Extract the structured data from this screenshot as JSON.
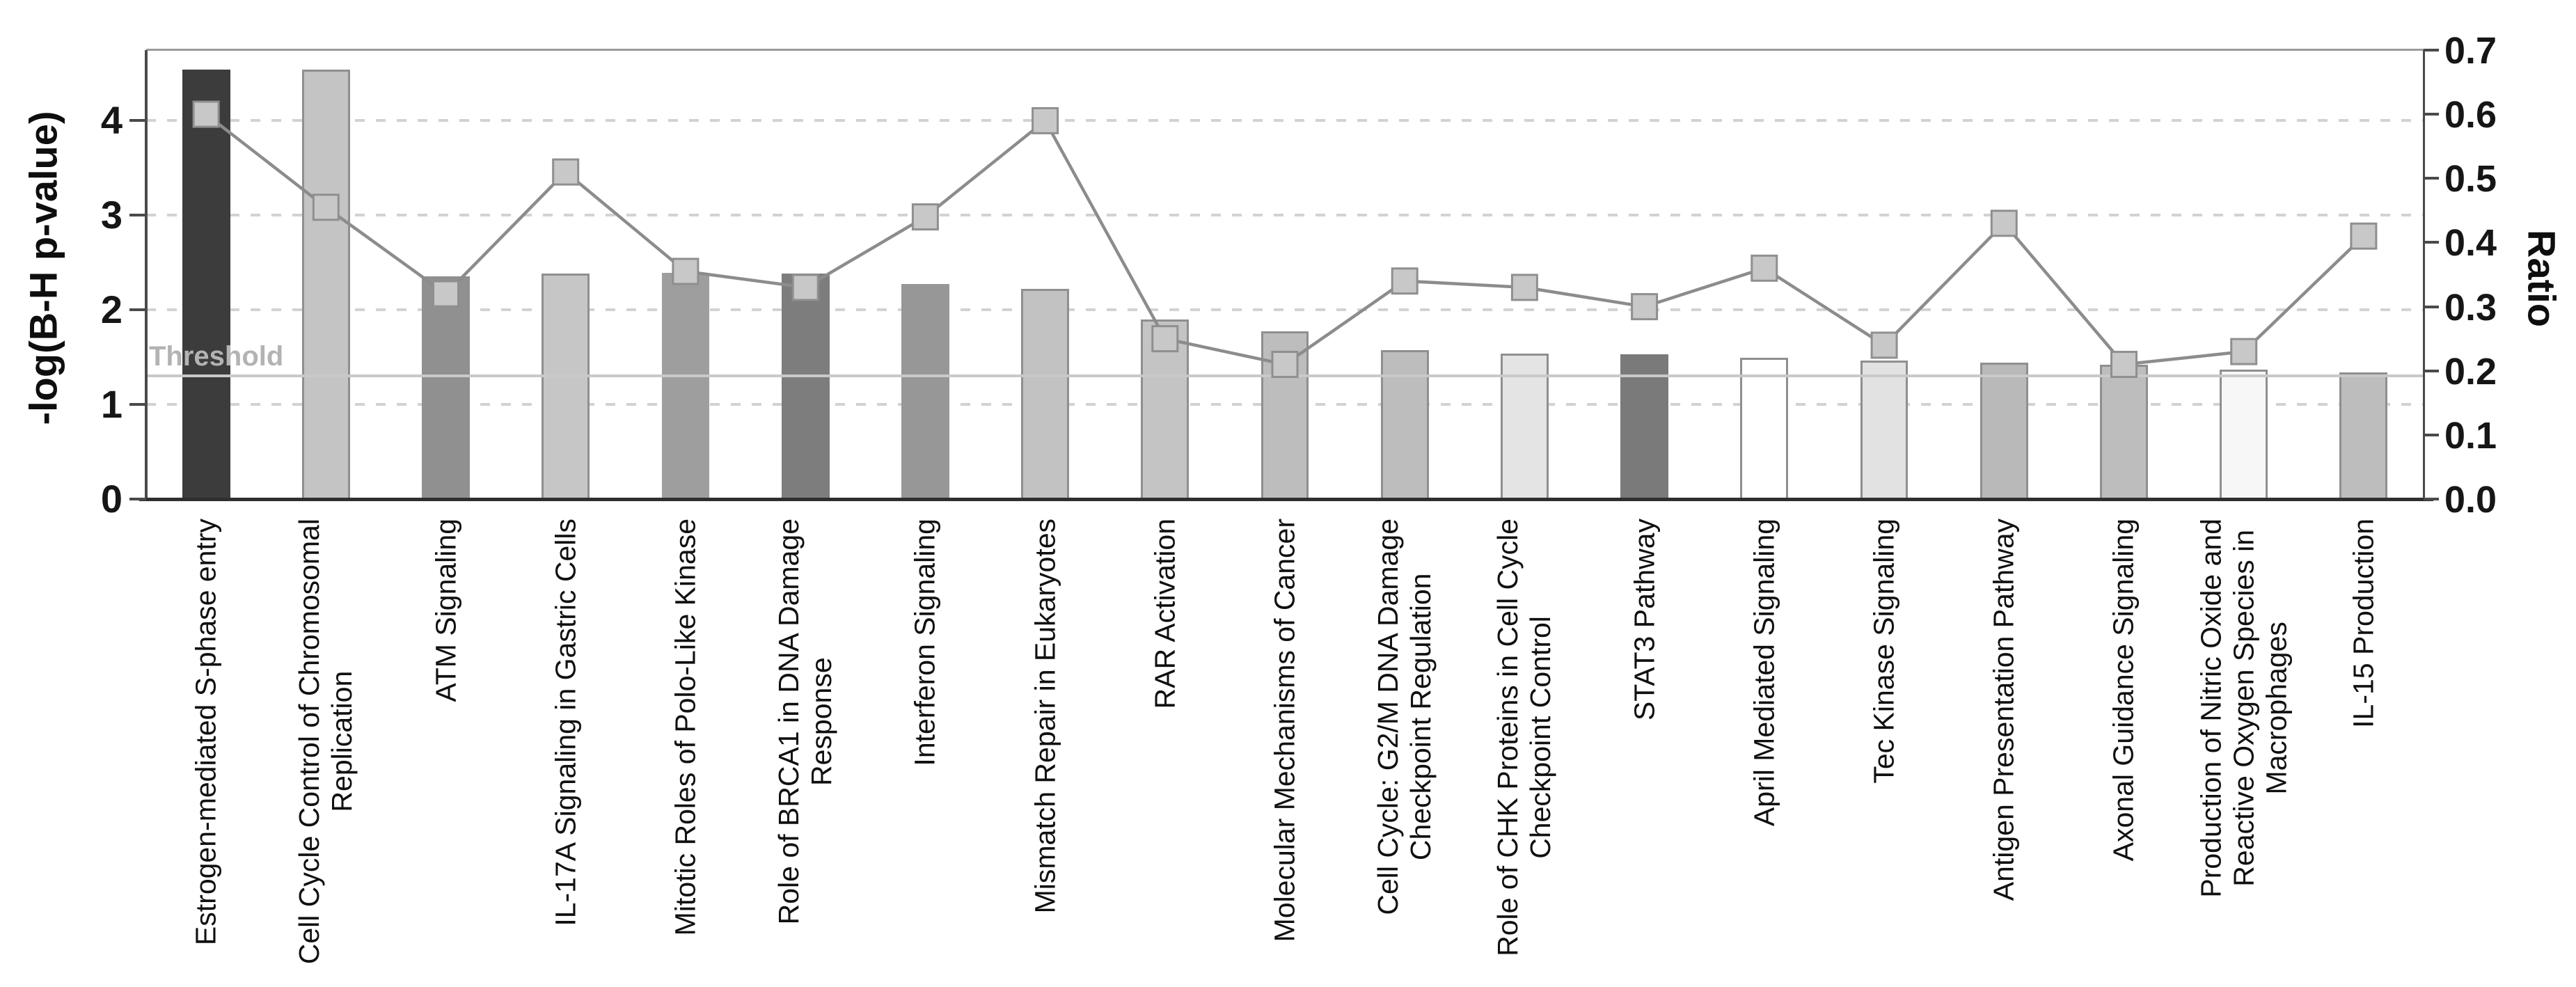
{
  "chart_data": {
    "type": "bar",
    "subtype": "bar-line-combo",
    "title": "",
    "left_axis": {
      "label": "-log(B-H p-value)",
      "tick_labels": [
        "0",
        "1",
        "2",
        "3",
        "4"
      ],
      "tick_values": [
        0,
        1,
        2,
        3,
        4
      ],
      "range": [
        0,
        4.74
      ],
      "grid": "dashed horizontal lines at 1, 2, 3, 4"
    },
    "right_axis": {
      "label": "Ratio",
      "tick_labels": [
        "0.0",
        "0.1",
        "0.2",
        "0.3",
        "0.4",
        "0.5",
        "0.6",
        "0.7"
      ],
      "tick_values": [
        0.0,
        0.1,
        0.2,
        0.3,
        0.4,
        0.5,
        0.6,
        0.7
      ],
      "range": [
        0,
        0.7
      ]
    },
    "threshold": {
      "label": "Threshold",
      "value": 1.3
    },
    "legend_position": "none",
    "categories": [
      "Estrogen-mediated S-phase entry",
      "Cell Cycle Control of Chromosomal\nReplication",
      "ATM Signaling",
      "IL-17A Signaling in Gastric Cells",
      "Mitotic Roles of Polo-Like Kinase",
      "Role of BRCA1 in DNA Damage\nResponse",
      "Interferon Signaling",
      "Mismatch Repair in Eukaryotes",
      "RAR Activation",
      "Molecular Mechanisms of Cancer",
      "Cell Cycle: G2/M DNA Damage\nCheckpoint Regulation",
      "Role of CHK Proteins in Cell Cycle\nCheckpoint Control",
      "STAT3 Pathway",
      "April Mediated Signaling",
      "Tec Kinase Signaling",
      "Antigen Presentation Pathway",
      "Axonal Guidance Signaling",
      "Production of Nitric Oxide and\nReactive Oxygen Species in\nMacrophages",
      "IL-15 Production"
    ],
    "series": [
      {
        "name": "-log(B-H p-value)",
        "type": "bar",
        "axis": "left",
        "values": [
          4.54,
          4.54,
          2.35,
          2.38,
          2.39,
          2.38,
          2.27,
          2.22,
          1.9,
          1.77,
          1.57,
          1.54,
          1.53,
          1.49,
          1.46,
          1.44,
          1.42,
          1.37,
          1.34
        ],
        "bar_colors": [
          "#3c3c3c",
          "#c4c4c4",
          "#909090",
          "#c6c6c6",
          "#9e9e9e",
          "#7d7d7d",
          "#979797",
          "#c2c2c2",
          "#c4c4c4",
          "#bdbdbd",
          "#bdbdbd",
          "#e4e4e4",
          "#7a7a7a",
          "#ffffff",
          "#e2e2e2",
          "#b9b9b9",
          "#bdbdbd",
          "#f7f7f7",
          "#bdbdbd"
        ]
      },
      {
        "name": "Ratio",
        "type": "line",
        "axis": "right",
        "marker": "square",
        "values": [
          0.6,
          0.455,
          0.32,
          0.51,
          0.355,
          0.33,
          0.44,
          0.59,
          0.25,
          0.21,
          0.34,
          0.33,
          0.3,
          0.36,
          0.24,
          0.43,
          0.21,
          0.23,
          0.41
        ]
      }
    ],
    "colors": {
      "line": "#8c8c8c",
      "marker_fill": "#c8c8c8",
      "marker_border": "#8f8f8f",
      "bar_border": "#8f8f8f",
      "threshold_line": "#c9c9c9",
      "threshold_text": "#b3b3b3",
      "gridline": "#d2d2d2",
      "axis_text": "#161616"
    }
  }
}
